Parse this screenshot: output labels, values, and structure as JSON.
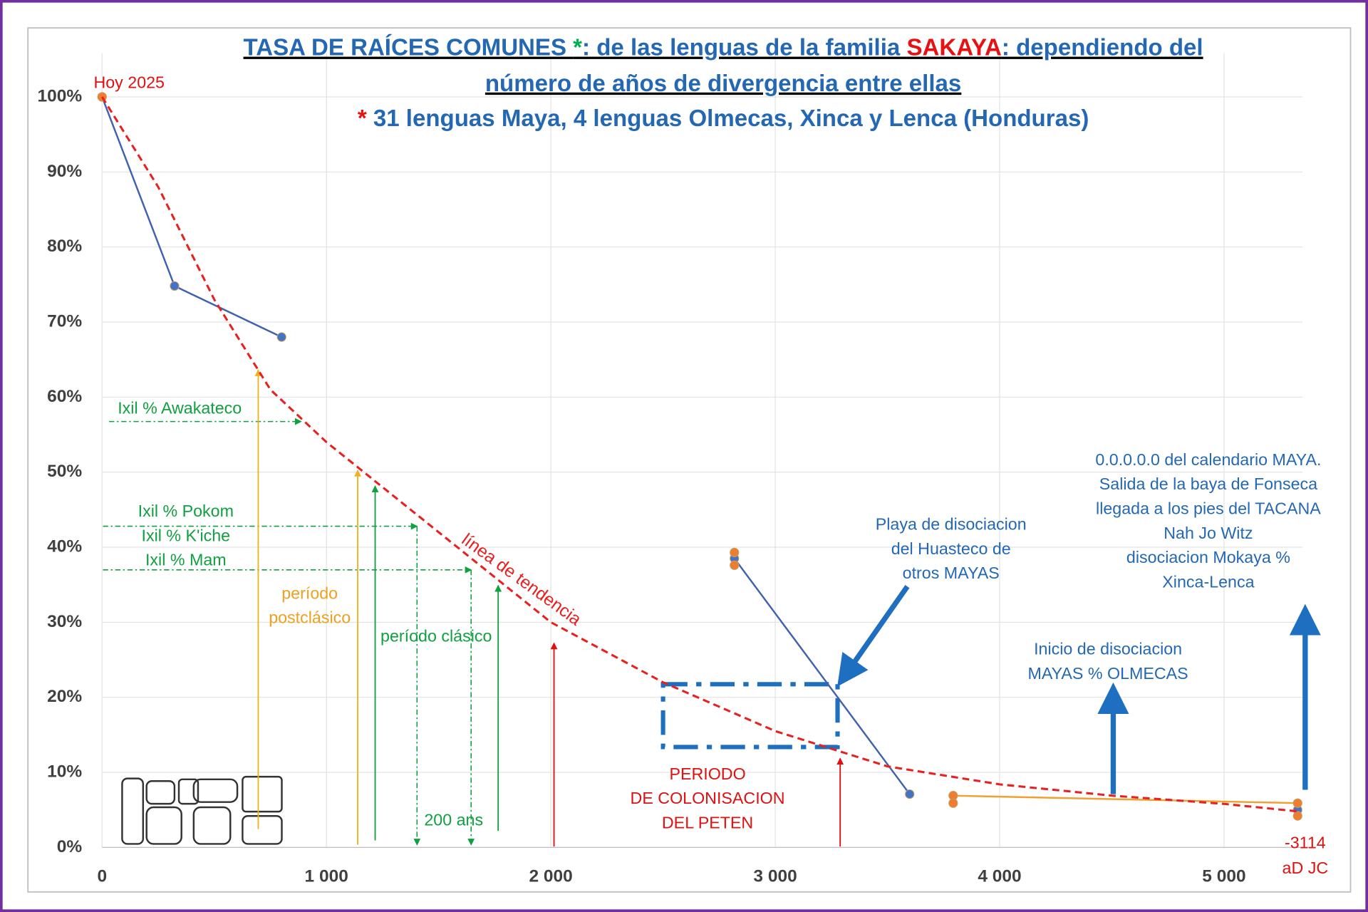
{
  "chart_data": {
    "type": "line",
    "title": [
      [
        {
          "text": "TASA DE RAÍCES COMUNES ",
          "color": "#2468b4"
        },
        {
          "text": "*",
          "color": "#00b050"
        },
        {
          "text": ": de las lenguas de la familia ",
          "color": "#2468b4"
        },
        {
          "text": "SAKAYA",
          "color": "#e81010"
        },
        {
          "text": ": dependiendo del",
          "color": "#2468b4"
        }
      ],
      [
        {
          "text": "número de años de divergencia entre ellas",
          "color": "#2468b4"
        }
      ]
    ],
    "subtitle": [
      {
        "text": "*",
        "color": "#e81010"
      },
      {
        "text": " 31 lenguas Maya, 4 lenguas Olmecas, Xinca y Lenca (Honduras)",
        "color": "#2468b4"
      }
    ],
    "xlim": [
      0,
      5350
    ],
    "ylim": [
      0,
      100
    ],
    "xticks": [
      0,
      {
        "value": 1000,
        "label": "1 000"
      },
      {
        "value": 2000,
        "label": "2 000"
      },
      {
        "value": 3000,
        "label": "3 000"
      },
      {
        "value": 4000,
        "label": "4 000"
      },
      {
        "value": 5000,
        "label": "5 000"
      }
    ],
    "yticks": [
      {
        "value": 0,
        "label": "0%"
      },
      {
        "value": 10,
        "label": "10%"
      },
      {
        "value": 20,
        "label": "20%"
      },
      {
        "value": 30,
        "label": "30%"
      },
      {
        "value": 40,
        "label": "40%"
      },
      {
        "value": 50,
        "label": "50%"
      },
      {
        "value": 60,
        "label": "60%"
      },
      {
        "value": 70,
        "label": "70%"
      },
      {
        "value": 80,
        "label": "80%"
      },
      {
        "value": 90,
        "label": "90%"
      },
      {
        "value": 100,
        "label": "100%"
      }
    ],
    "grid": true,
    "series": [
      {
        "color": "#4061b0",
        "marker_color": "#4472c4",
        "x": [
          0,
          323,
          800,
          null,
          2818,
          3599,
          null,
          5328
        ],
        "values": [
          100,
          74.8,
          68,
          null,
          38.5,
          7.1,
          null,
          5
        ]
      },
      {
        "color": "#f0a030",
        "marker_color": "#ed7d31",
        "x": [
          0,
          null,
          2818,
          null,
          2818,
          null,
          3793,
          5328,
          null,
          3793,
          null,
          5328
        ],
        "values": [
          100,
          null,
          39.3,
          null,
          37.6,
          null,
          6.9,
          5.9,
          null,
          5.9,
          null,
          4.2
        ]
      },
      {
        "name": "línea de tendencia",
        "color": "#e82020",
        "dashed": true,
        "markers": false,
        "x": [
          0,
          250,
          500,
          750,
          1000,
          1500,
          2000,
          2500,
          3000,
          3500,
          4000,
          4500,
          5000,
          5330
        ],
        "values": [
          100,
          88,
          73,
          61,
          54,
          42,
          30,
          22,
          15.5,
          10.8,
          8.4,
          6.9,
          5.8,
          4.8
        ]
      }
    ],
    "annotations": [
      {
        "lines": [
          "Hoy 2025"
        ],
        "color": "#e01010"
      },
      {
        "lines": [
          "Ixil % Awakateco"
        ],
        "color": "#10a040"
      },
      {
        "lines": [
          "Ixil % Pokom",
          "Ixil % K'iche",
          "Ixil % Mam"
        ],
        "color": "#10a040"
      },
      {
        "lines": [
          "período",
          "postclásico"
        ],
        "color": "#f0a020"
      },
      {
        "lines": [
          "período clásico"
        ],
        "color": "#10a040"
      },
      {
        "lines": [
          "200 ans"
        ],
        "color": "#10a040"
      },
      {
        "lines": [
          "PERIODO",
          "DE COLONISACION",
          "DEL PETEN"
        ],
        "color": "#e01010"
      },
      {
        "lines": [
          "Playa de disociacion",
          "del Huasteco de",
          "otros MAYAS"
        ],
        "color": "#2468b4"
      },
      {
        "lines": [
          "Inicio de disociacion",
          "MAYAS % OLMECAS"
        ],
        "color": "#2468b4"
      },
      {
        "lines": [
          "0.0.0.0.0 del calendario MAYA.",
          "Salida de la baya de Fonseca",
          "llegada a los pies del TACANA",
          "Nah Jo Witz",
          "disociacion Mokaya %",
          "Xinca-Lenca"
        ],
        "color": "#2468b4"
      },
      {
        "lines": [
          "-3114",
          "aD JC"
        ],
        "color": "#e01010"
      }
    ]
  }
}
